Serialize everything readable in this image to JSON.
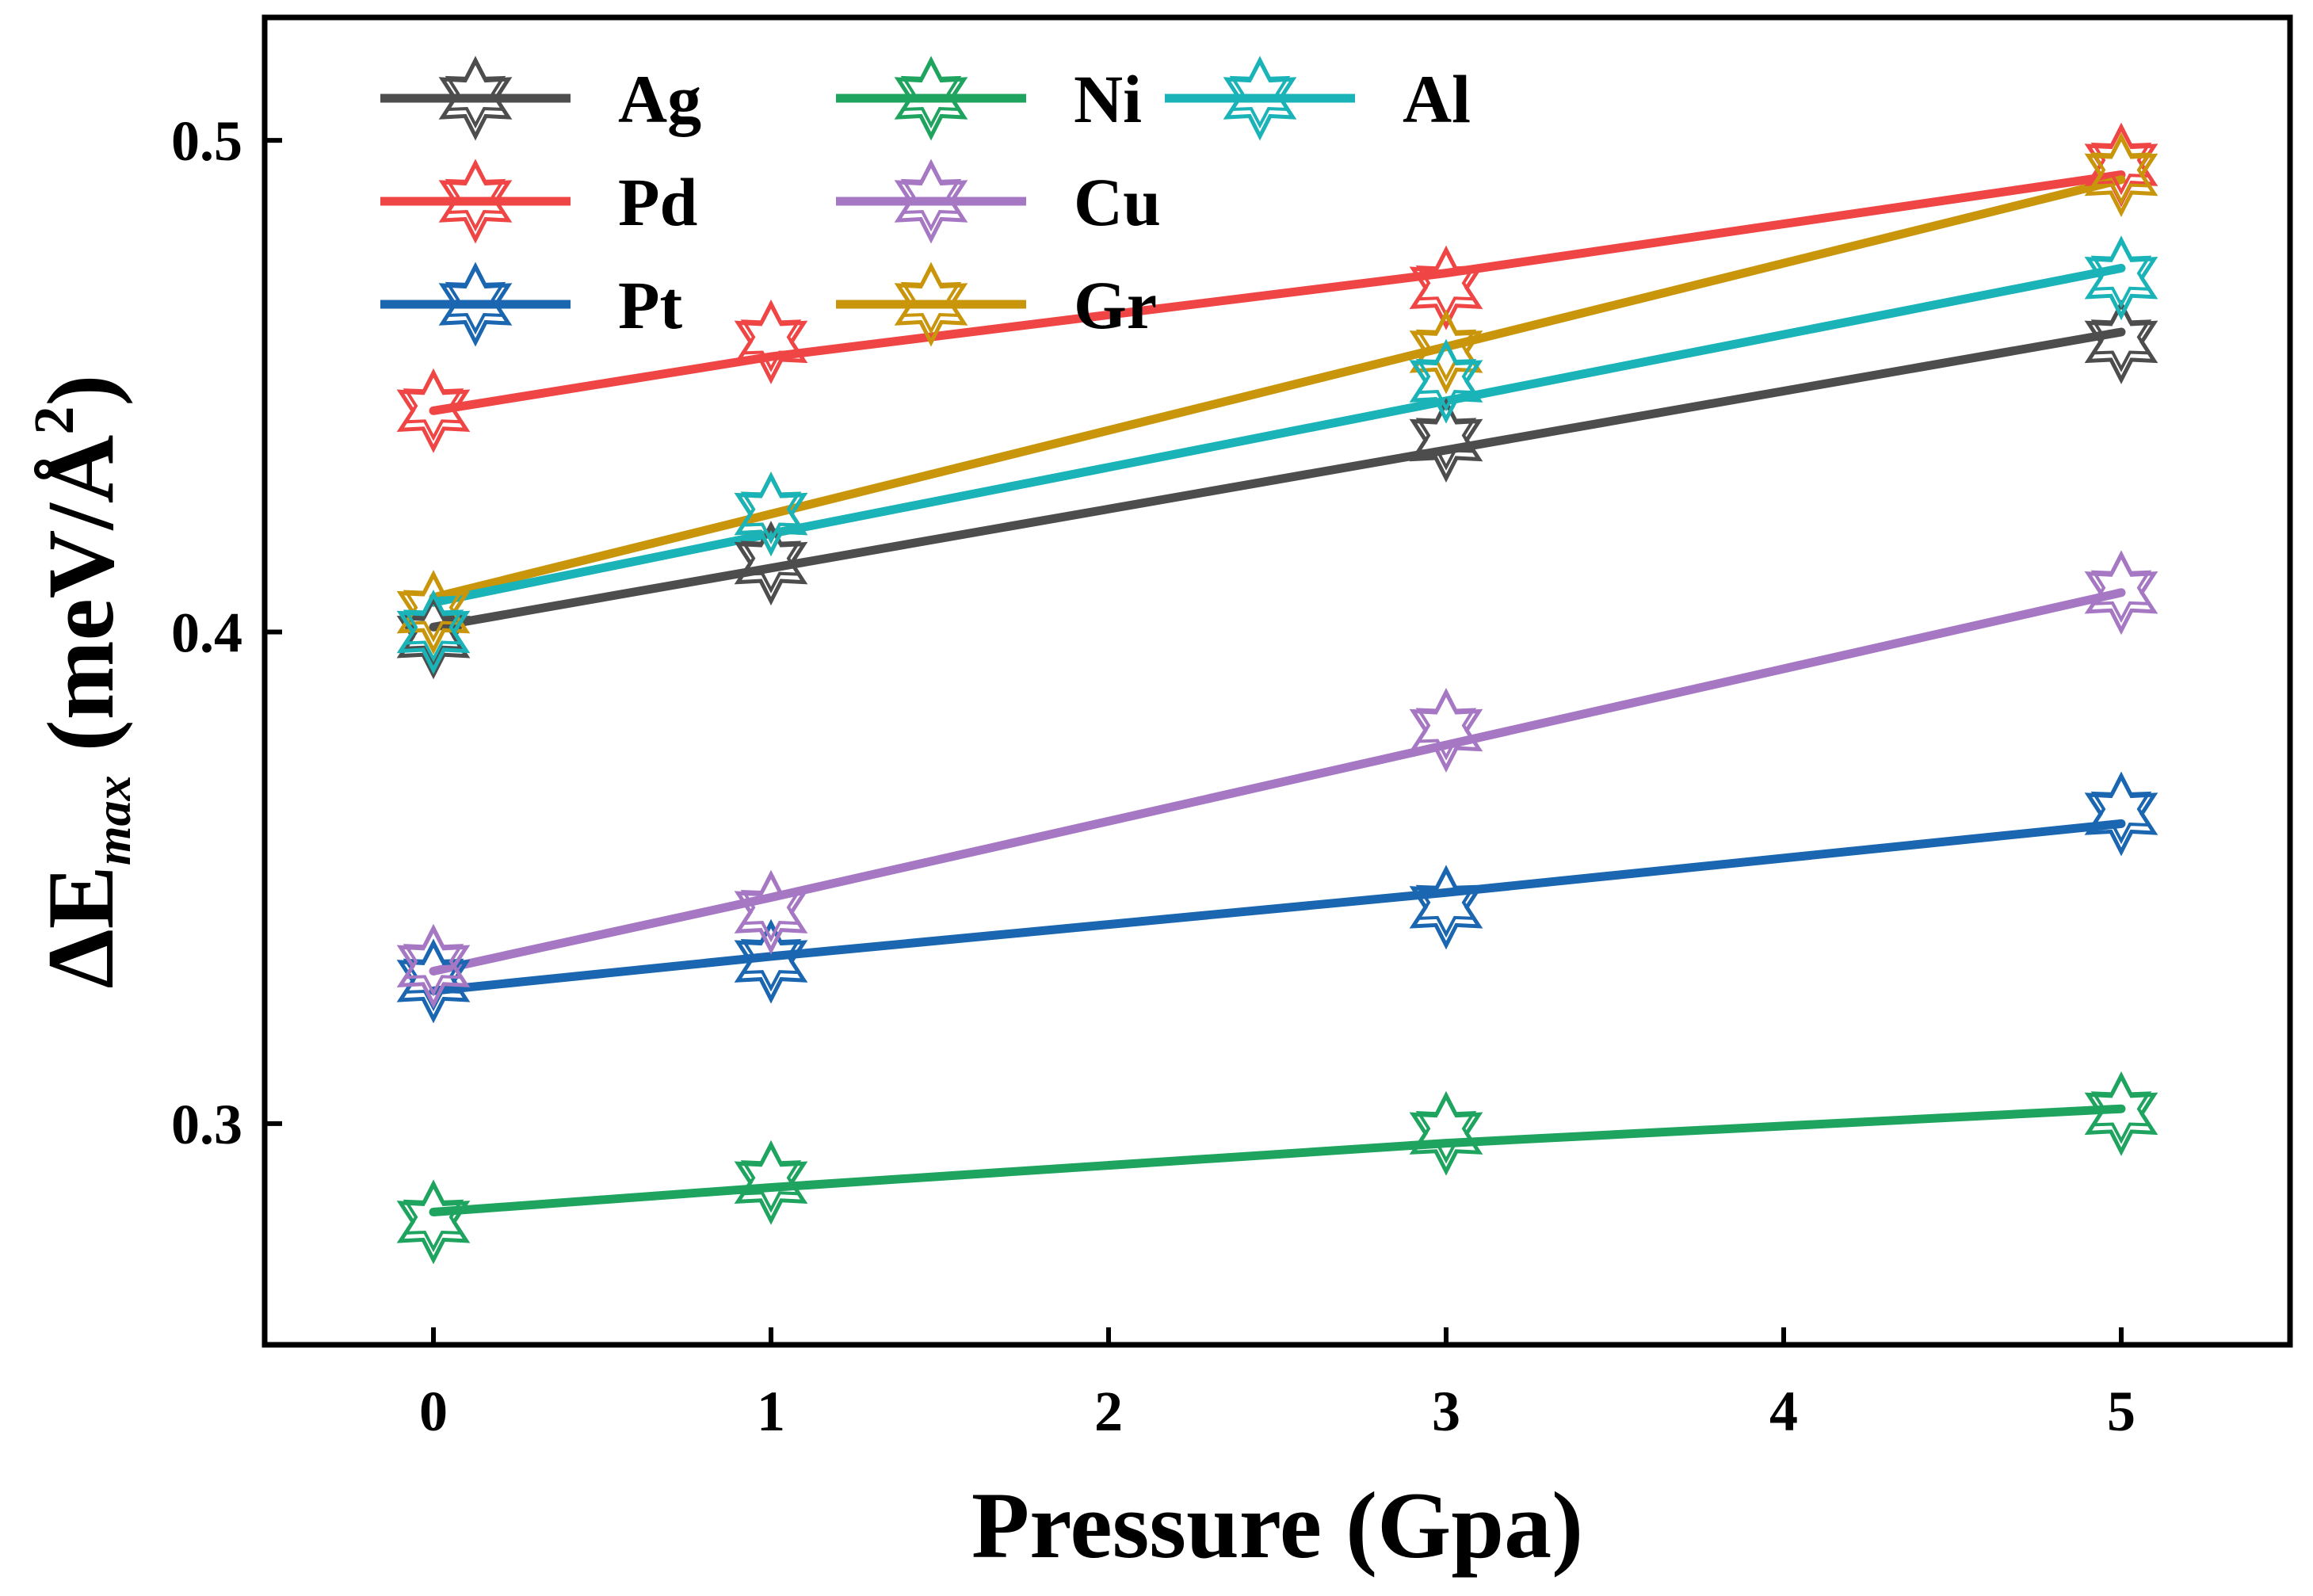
{
  "chart_data": {
    "type": "line",
    "title": "",
    "xlabel": "Pressure (Gpa)",
    "ylabel_symbol": "ΔE",
    "ylabel_subscript": "max",
    "ylabel_units": " (meV/Å",
    "ylabel_sup": "2",
    "ylabel_close": ")",
    "xlim": [
      -0.5,
      5.5
    ],
    "ylim": [
      0.255,
      0.525
    ],
    "xticks": [
      0,
      1,
      2,
      3,
      4,
      5
    ],
    "xtick_labels": [
      "0",
      "1",
      "2",
      "3",
      "4",
      "5"
    ],
    "yticks": [
      0.3,
      0.4,
      0.5
    ],
    "ytick_labels": [
      "0.3",
      "0.4",
      "0.5"
    ],
    "legend_position": "top-left",
    "grid": false,
    "x": [
      0,
      1,
      3,
      5
    ],
    "series": [
      {
        "name": "Ag",
        "color": "#4d4d4d",
        "line_values": [
          0.401,
          0.413,
          0.437,
          0.461
        ],
        "marker_values": [
          0.399,
          0.414,
          0.439,
          0.459
        ]
      },
      {
        "name": "Pd",
        "color": "#f04545",
        "line_values": [
          0.445,
          0.456,
          0.473,
          0.493
        ],
        "marker_values": [
          0.445,
          0.459,
          0.47,
          0.495
        ]
      },
      {
        "name": "Pt",
        "color": "#1a66b0",
        "line_values": [
          0.327,
          0.334,
          0.347,
          0.361
        ],
        "marker_values": [
          0.329,
          0.333,
          0.344,
          0.363
        ]
      },
      {
        "name": "Ni",
        "color": "#1fa45f",
        "line_values": [
          0.282,
          0.287,
          0.296,
          0.303
        ],
        "marker_values": [
          0.28,
          0.288,
          0.298,
          0.302
        ]
      },
      {
        "name": "Cu",
        "color": "#a678c4",
        "line_values": [
          0.331,
          0.346,
          0.377,
          0.408
        ],
        "marker_values": [
          0.332,
          0.343,
          0.38,
          0.408
        ]
      },
      {
        "name": "Gr",
        "color": "#c9950a",
        "line_values": [
          0.407,
          0.424,
          0.458,
          0.492
        ],
        "marker_values": [
          0.404,
          0.424,
          0.457,
          0.493
        ]
      },
      {
        "name": "Al",
        "color": "#19b3b8",
        "line_values": [
          0.406,
          0.42,
          0.447,
          0.474
        ],
        "marker_values": [
          0.4,
          0.424,
          0.451,
          0.472
        ]
      }
    ]
  }
}
